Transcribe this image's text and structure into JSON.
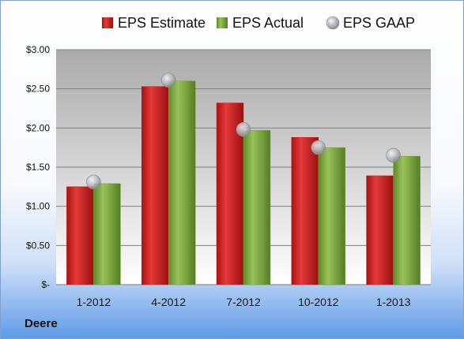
{
  "company": "Deere",
  "chart_data": {
    "type": "bar",
    "categories": [
      "1-2012",
      "4-2012",
      "7-2012",
      "10-2012",
      "1-2013"
    ],
    "series": [
      {
        "name": "EPS Estimate",
        "kind": "bar",
        "color": "#cc1f1f",
        "values": [
          1.25,
          2.53,
          2.32,
          1.88,
          1.39
        ]
      },
      {
        "name": "EPS Actual",
        "kind": "bar",
        "color": "#77a33a",
        "values": [
          1.29,
          2.6,
          1.97,
          1.75,
          1.64
        ]
      },
      {
        "name": "EPS GAAP",
        "kind": "marker",
        "color": "#a9aeb6",
        "values": [
          1.31,
          2.61,
          1.98,
          1.75,
          1.65
        ]
      }
    ],
    "y_ticks": [
      {
        "value": 0,
        "label": "$-"
      },
      {
        "value": 0.5,
        "label": "$0.50"
      },
      {
        "value": 1.0,
        "label": "$1.00"
      },
      {
        "value": 1.5,
        "label": "$1.50"
      },
      {
        "value": 2.0,
        "label": "$2.00"
      },
      {
        "value": 2.5,
        "label": "$2.50"
      },
      {
        "value": 3.0,
        "label": "$3.00"
      }
    ],
    "ylim": [
      0,
      3.0
    ],
    "grid": true,
    "legend_position": "top"
  }
}
